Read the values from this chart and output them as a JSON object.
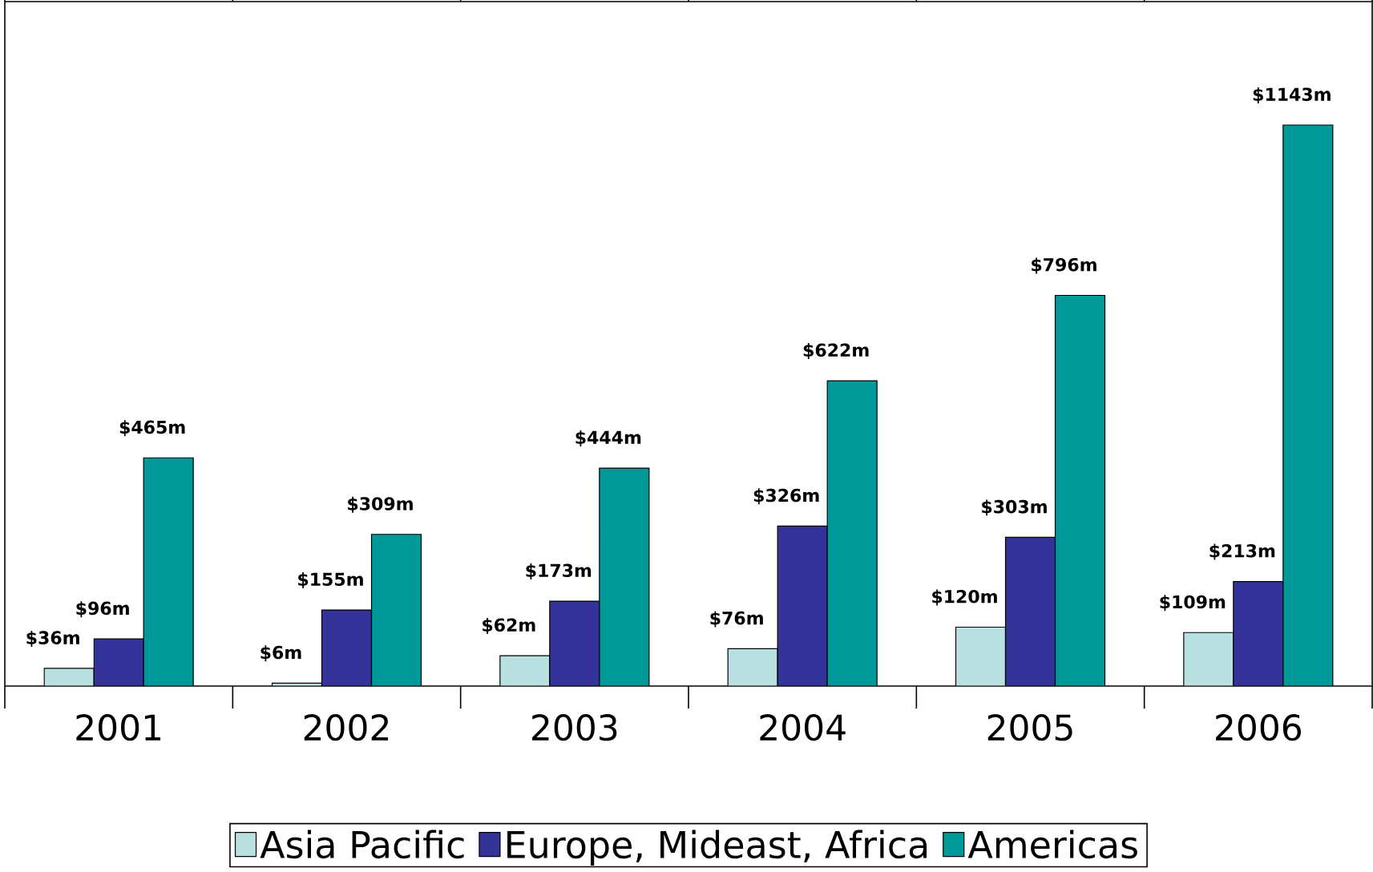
{
  "chart_data": {
    "type": "bar",
    "categories": [
      "2001",
      "2002",
      "2003",
      "2004",
      "2005",
      "2006"
    ],
    "legend": "bottom",
    "series": [
      {
        "name": "Asia Pacific",
        "color": "#b8e0e0",
        "values": [
          36,
          6,
          62,
          76,
          120,
          109
        ],
        "value_labels": [
          "$36m",
          "$6m",
          "$62m",
          "$76m",
          "$120m",
          "$109m"
        ]
      },
      {
        "name": "Europe, Mideast, Africa",
        "color": "#333399",
        "values": [
          96,
          155,
          173,
          326,
          303,
          213
        ],
        "value_labels": [
          "$96m",
          "$155m",
          "$173m",
          "$326m",
          "$303m",
          "$213m"
        ]
      },
      {
        "name": "Americas",
        "color": "#009999",
        "values": [
          465,
          309,
          444,
          622,
          796,
          1143
        ],
        "value_labels": [
          "$465m",
          "$309m",
          "$444m",
          "$622m",
          "$796m",
          "$1143m"
        ]
      }
    ]
  }
}
